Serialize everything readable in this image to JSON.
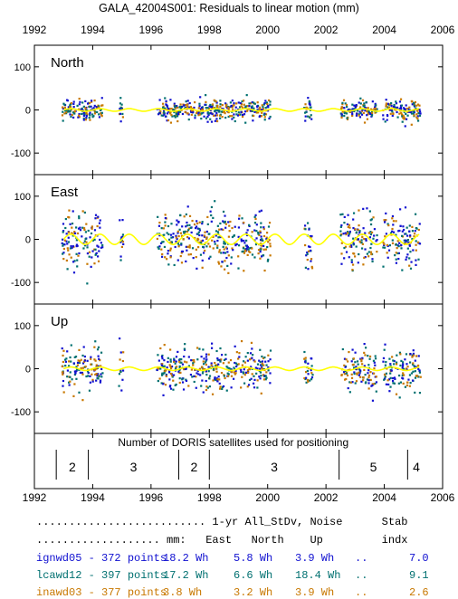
{
  "chart_data": {
    "title": "GALA_42004S001: Residuals to linear motion (mm)",
    "type": "scatter",
    "xlim": [
      1992,
      2006
    ],
    "xticks": [
      1992,
      1994,
      1996,
      1998,
      2000,
      2002,
      2004,
      2006
    ],
    "ylim": [
      -150,
      150
    ],
    "yticks": [
      -100,
      0,
      100
    ],
    "panels": [
      {
        "label": "North",
        "amp": 12,
        "fit_amp": 3
      },
      {
        "label": "East",
        "amp": 32,
        "fit_amp": 12
      },
      {
        "label": "Up",
        "amp": 25,
        "fit_amp": 4
      }
    ],
    "data_spans": [
      [
        1992.95,
        1994.35
      ],
      [
        1994.9,
        1995.05
      ],
      [
        1996.2,
        2000.1
      ],
      [
        2001.25,
        2001.55
      ],
      [
        2002.5,
        2003.75
      ],
      [
        2003.95,
        2005.25
      ]
    ],
    "satellites": {
      "caption": "Number of DORIS satellites used for positioning",
      "boundaries": [
        1992.75,
        1993.85,
        1996.95,
        1998.0,
        2002.45,
        2004.8
      ],
      "segments": [
        {
          "start": 1992.75,
          "end": 1993.85,
          "count": "2"
        },
        {
          "start": 1993.85,
          "end": 1996.95,
          "count": "3"
        },
        {
          "start": 1996.95,
          "end": 1998.0,
          "count": "2"
        },
        {
          "start": 1998.0,
          "end": 2002.45,
          "count": "3"
        },
        {
          "start": 2002.45,
          "end": 2004.8,
          "count": "5"
        },
        {
          "start": 2004.8,
          "end": 2006.0,
          "count": "4"
        }
      ]
    },
    "series": [
      {
        "name": "ignwd05",
        "color": "#1010d0",
        "points": 372,
        "east": "18.2 Wh",
        "north": "5.8 Wh",
        "up": "3.9 Wh",
        "stab": "7.0"
      },
      {
        "name": "lcawd12",
        "color": "#007070",
        "points": 397,
        "east": "17.2 Wh",
        "north": "6.6 Wh",
        "up": "18.4 Wh",
        "stab": "9.1"
      },
      {
        "name": "inawd03",
        "color": "#c87800",
        "points": 377,
        "east": "3.8 Wh",
        "north": "3.2 Wh",
        "up": "3.9 Wh",
        "stab": "2.6"
      }
    ],
    "fit_color": "#ffff00"
  },
  "stats": {
    "header_line1": ".......................... 1-yr All_StDv, Noise      Stab",
    "header_line2": "................... mm:   East   North    Up         indx",
    "points_label": "points",
    "sep": ".."
  }
}
